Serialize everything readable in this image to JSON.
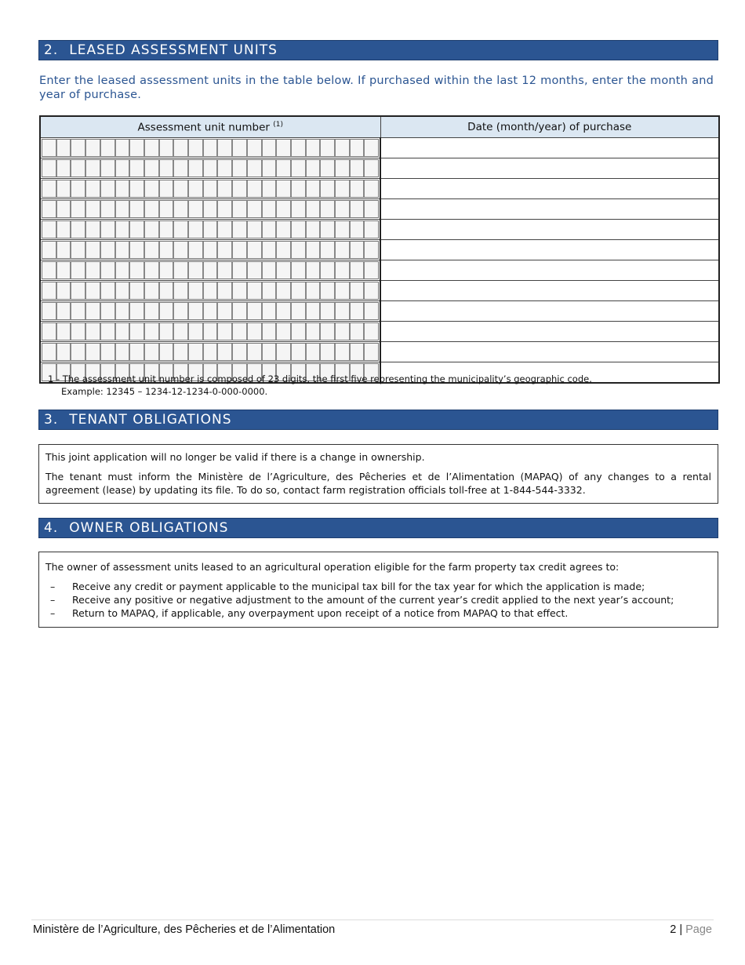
{
  "section2": {
    "number": "2.",
    "title": "LEASED ASSESSMENT UNITS",
    "intro": "Enter the leased assessment units in the table below. If purchased within the last 12 months, enter the month and year of purchase.",
    "table": {
      "col1": "Assessment unit number",
      "col1_note": "(1)",
      "col2": "Date (month/year) of purchase",
      "rows": 12,
      "digits": 23
    },
    "footnote": "1 - The assessment unit number is composed of 23 digits, the first five representing the municipality’s geographic code.",
    "example": "Example: 12345 – 1234-12-1234-0-000-0000."
  },
  "section3": {
    "number": "3.",
    "title": "TENANT OBLIGATIONS",
    "p1": "This joint application will no longer be valid if there is a change in ownership.",
    "p2": "The tenant must inform the Ministère de l’Agriculture, des Pêcheries et de l’Alimentation (MAPAQ) of any changes to a rental agreement (lease) by updating its file. To do so, contact farm registration officials toll-free at 1-844-544-3332."
  },
  "section4": {
    "number": "4.",
    "title": "OWNER OBLIGATIONS",
    "intro": "The owner of assessment units leased to an agricultural operation eligible for the farm property tax credit agrees to:",
    "items": [
      "Receive any credit or payment applicable to the municipal tax bill for the tax year for which the application is made;",
      "Receive any positive or negative adjustment to the amount of the current year’s credit applied to the next year’s account;",
      "Return to MAPAQ, if applicable, any overpayment upon receipt of a notice from MAPAQ to that effect."
    ],
    "dash": "–"
  },
  "footer": {
    "ministry": "Ministère de l’Agriculture, des Pêcheries et de l’Alimentation",
    "page_number": "2",
    "separator": "|",
    "page_label": "Page"
  },
  "colors": {
    "header_blue": "#2b5592",
    "table_header": "#dbe7f2"
  }
}
